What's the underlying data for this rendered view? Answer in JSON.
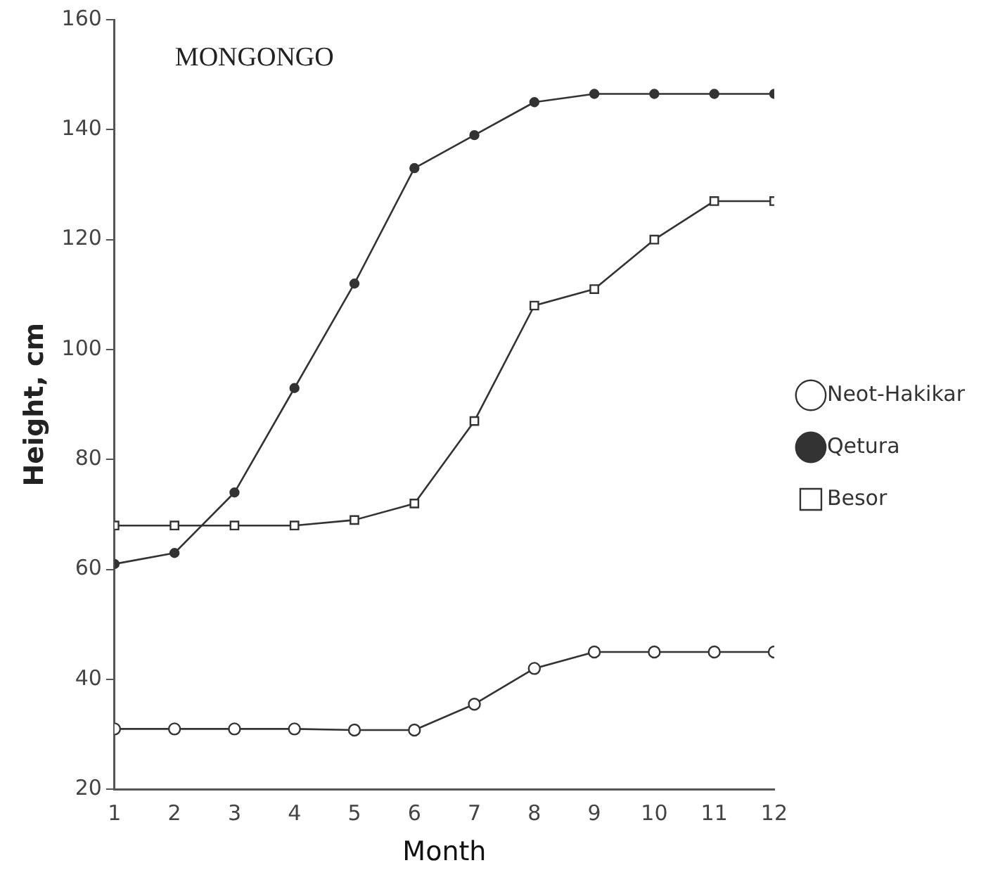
{
  "chart_data": {
    "type": "line",
    "title": "MONGONGO",
    "xlabel": "Month",
    "ylabel": "Height, cm",
    "x": [
      1,
      2,
      3,
      4,
      5,
      6,
      7,
      8,
      9,
      10,
      11,
      12
    ],
    "xlim": [
      1,
      12
    ],
    "xticks": [
      1,
      2,
      3,
      4,
      5,
      6,
      7,
      8,
      9,
      10,
      11,
      12
    ],
    "ylim": [
      20,
      160
    ],
    "yticks": [
      20,
      40,
      60,
      80,
      100,
      120,
      140,
      160
    ],
    "grid": false,
    "legend": "right",
    "line_style": "solid",
    "series": [
      {
        "name": "Neot-Hakikar",
        "color": "#333333",
        "marker": "circle",
        "values": [
          31,
          31,
          31,
          31,
          30.8,
          30.8,
          35.5,
          42,
          45,
          45,
          45,
          45
        ]
      },
      {
        "name": "Qetura",
        "color": "#333333",
        "marker": "filled-circle",
        "values": [
          61,
          63,
          74,
          93,
          112,
          133,
          139,
          145,
          146.5,
          146.5,
          146.5,
          146.5
        ]
      },
      {
        "name": "Besor",
        "color": "#333333",
        "marker": "square",
        "values": [
          68,
          68,
          68,
          68,
          69,
          72,
          87,
          108,
          111,
          120,
          127,
          127
        ]
      }
    ]
  }
}
